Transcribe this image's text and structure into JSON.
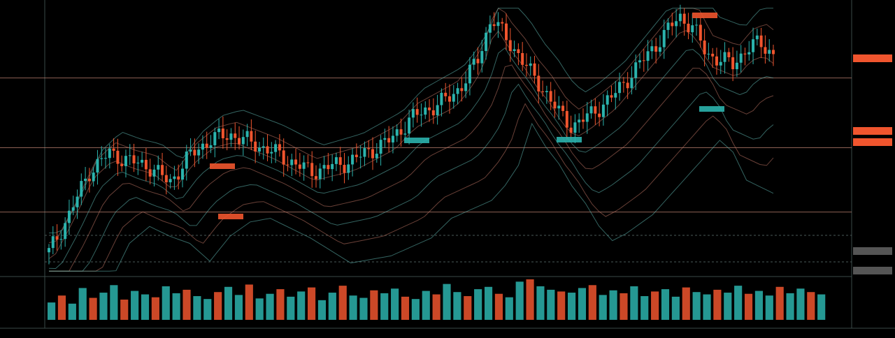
{
  "colors": {
    "background": "#000000",
    "up": "#2bb3ad",
    "down": "#f0552e",
    "grid": "#2a3a38",
    "hline": "#c98a7a",
    "ma_teal": "#5fb7b0",
    "ma_salmon": "#c07565",
    "label_text": "#d7e2e0"
  },
  "chart_data": {
    "type": "candlestick",
    "title": "",
    "grid": false,
    "price_axis_labels": [
      "",
      "",
      "",
      "",
      "",
      "",
      "",
      "",
      "",
      "",
      "",
      "",
      "",
      "",
      "",
      ""
    ],
    "time_axis_labels": [
      "",
      "",
      "",
      "",
      "",
      "",
      "",
      "",
      "",
      "",
      "",
      "",
      "",
      "",
      "",
      "",
      "",
      ""
    ],
    "ylim": [
      0,
      100
    ],
    "price_path": [
      [
        0,
        8
      ],
      [
        3,
        22
      ],
      [
        6,
        38
      ],
      [
        9,
        45
      ],
      [
        12,
        42
      ],
      [
        15,
        40
      ],
      [
        18,
        34
      ],
      [
        21,
        44
      ],
      [
        24,
        50
      ],
      [
        27,
        52
      ],
      [
        30,
        49
      ],
      [
        33,
        46
      ],
      [
        36,
        42
      ],
      [
        39,
        38
      ],
      [
        42,
        40
      ],
      [
        45,
        42
      ],
      [
        48,
        46
      ],
      [
        51,
        50
      ],
      [
        54,
        58
      ],
      [
        57,
        62
      ],
      [
        60,
        66
      ],
      [
        62,
        72
      ],
      [
        64,
        80
      ],
      [
        66,
        96
      ],
      [
        68,
        88
      ],
      [
        70,
        82
      ],
      [
        72,
        74
      ],
      [
        74,
        68
      ],
      [
        76,
        60
      ],
      [
        78,
        55
      ],
      [
        80,
        58
      ],
      [
        82,
        62
      ],
      [
        84,
        66
      ],
      [
        86,
        72
      ],
      [
        88,
        78
      ],
      [
        90,
        84
      ],
      [
        92,
        90
      ],
      [
        94,
        96
      ],
      [
        96,
        92
      ],
      [
        98,
        82
      ],
      [
        100,
        80
      ],
      [
        102,
        78
      ],
      [
        104,
        84
      ],
      [
        106,
        86
      ],
      [
        108,
        82
      ]
    ],
    "volume": [
      30,
      42,
      28,
      55,
      38,
      47,
      60,
      35,
      50,
      44,
      39,
      58,
      46,
      52,
      41,
      36,
      48,
      57,
      43,
      61,
      37,
      45,
      53,
      40,
      49,
      56,
      34,
      47,
      59,
      42,
      38,
      51,
      46,
      54,
      40,
      36,
      50,
      44,
      62,
      48,
      41,
      53,
      57,
      45,
      39,
      66,
      70,
      58,
      52,
      49,
      47,
      55,
      60,
      43,
      51,
      46,
      58,
      41,
      49,
      53,
      40,
      56,
      48,
      44,
      52,
      47,
      59,
      45,
      50,
      42,
      57,
      46,
      54,
      48,
      44
    ],
    "horizontal_levels": [
      73,
      47,
      23
    ]
  }
}
